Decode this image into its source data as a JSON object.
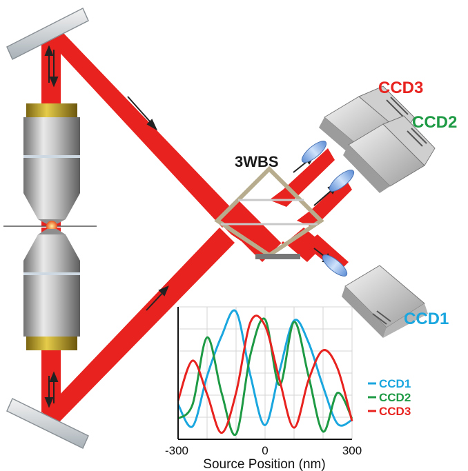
{
  "labels": {
    "ccd3": "CCD3",
    "ccd2": "CCD2",
    "ccd1": "CCD1",
    "splitter": "3WBS"
  },
  "colors": {
    "beam": "#e8231f",
    "ccd1": "#1aa6de",
    "ccd2": "#1e9a45",
    "ccd3": "#e8231f",
    "splitter_frame": "#b7ac8d",
    "lens": "#8fb8e8"
  },
  "legend": {
    "items": [
      {
        "label": "CCD1",
        "color": "#1aa6de"
      },
      {
        "label": "CCD2",
        "color": "#1e9a45"
      },
      {
        "label": "CCD3",
        "color": "#e8231f"
      }
    ]
  },
  "chart_data": {
    "type": "line",
    "xlabel": "Source Position (nm)",
    "ylabel": "",
    "xlim": [
      -300,
      300
    ],
    "ylim": [
      0,
      1
    ],
    "xticks": [
      -300,
      0,
      300
    ],
    "grid": true,
    "series": [
      {
        "name": "CCD1",
        "color": "#1aa6de",
        "x": [
          -300,
          -250,
          -200,
          -150,
          -100,
          -50,
          0,
          50,
          100,
          150,
          200,
          250,
          300
        ],
        "y": [
          0.27,
          0.1,
          0.49,
          0.8,
          0.99,
          0.49,
          0.11,
          0.53,
          0.92,
          0.75,
          0.41,
          0.12,
          0.15
        ]
      },
      {
        "name": "CCD2",
        "color": "#1e9a45",
        "x": [
          -300,
          -250,
          -200,
          -150,
          -100,
          -50,
          0,
          50,
          100,
          150,
          200,
          250,
          300
        ],
        "y": [
          0.16,
          0.27,
          0.79,
          0.36,
          0.04,
          0.66,
          0.93,
          0.42,
          0.91,
          0.49,
          0.06,
          0.36,
          0.16
        ]
      },
      {
        "name": "CCD3",
        "color": "#e8231f",
        "x": [
          -300,
          -250,
          -200,
          -150,
          -100,
          -50,
          0,
          50,
          100,
          150,
          200,
          250,
          300
        ],
        "y": [
          0.3,
          0.61,
          0.35,
          0.05,
          0.36,
          0.91,
          0.88,
          0.46,
          0.09,
          0.46,
          0.69,
          0.55,
          0.14
        ]
      }
    ]
  }
}
